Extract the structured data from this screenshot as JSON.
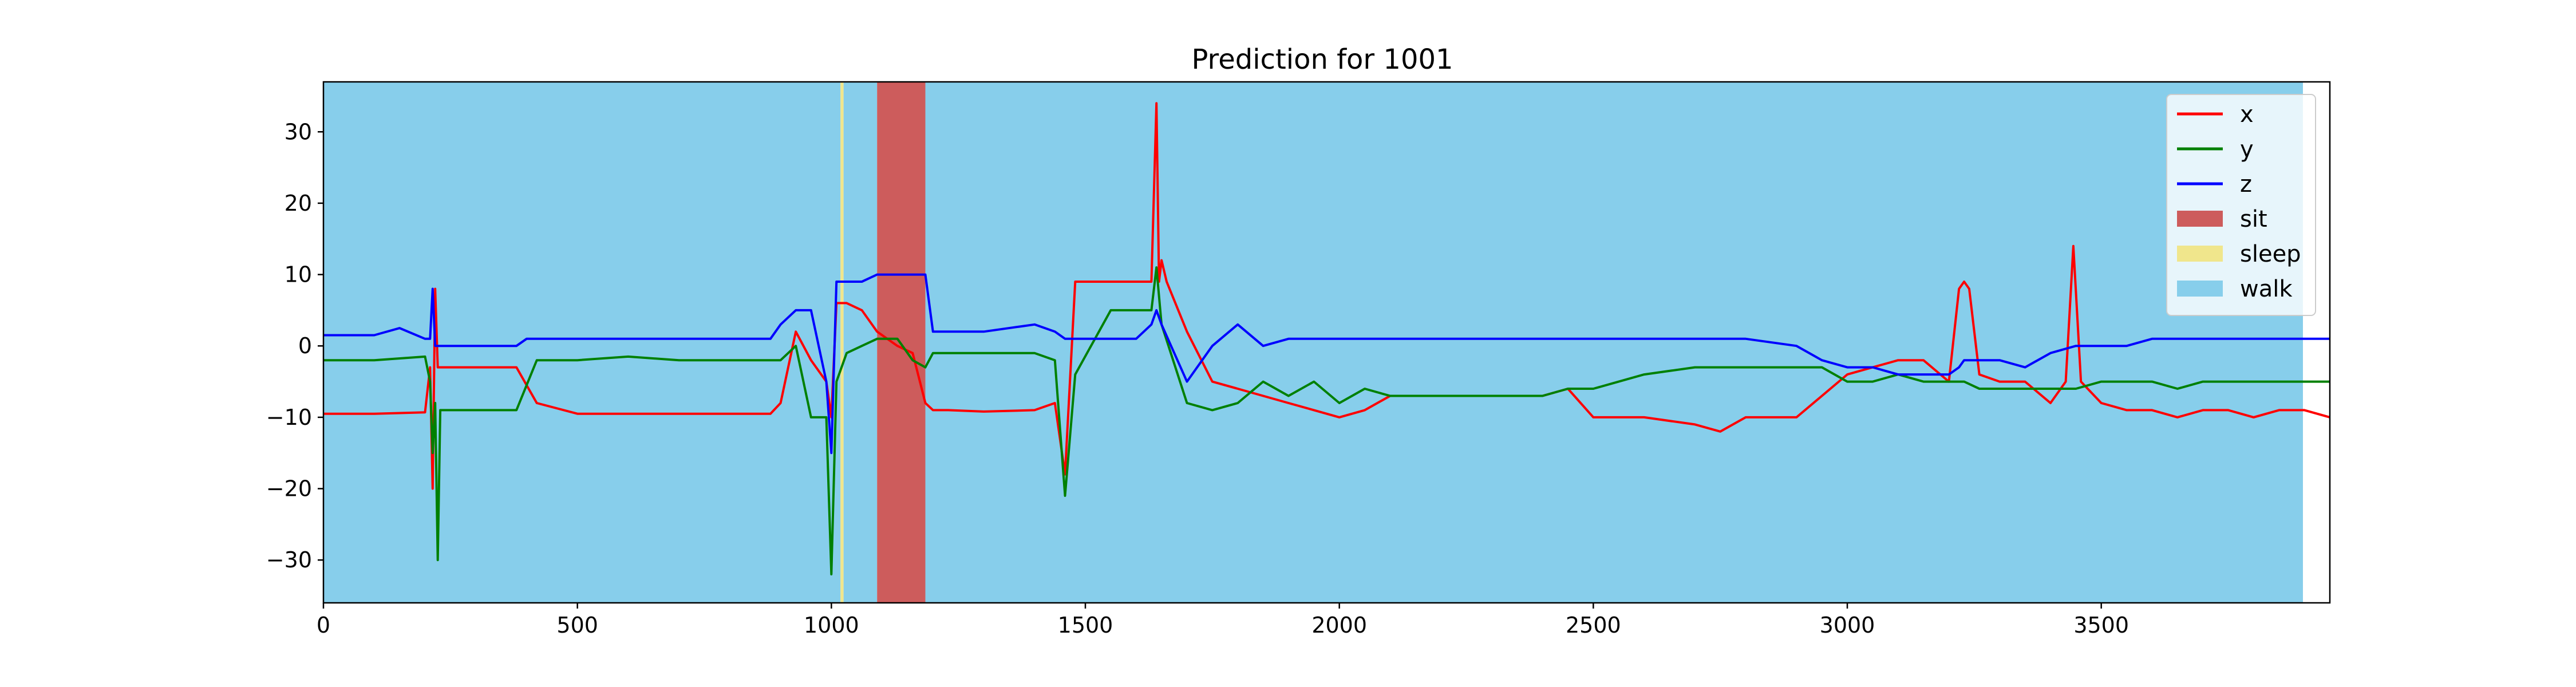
{
  "chart_data": {
    "type": "line",
    "title": "Prediction for 1001",
    "xlabel": "",
    "ylabel": "",
    "xlim": [
      0,
      3950
    ],
    "ylim": [
      -36,
      37
    ],
    "xticks": [
      0,
      500,
      1000,
      1500,
      2000,
      2500,
      3000,
      3500
    ],
    "yticks": [
      -30,
      -20,
      -10,
      0,
      10,
      20,
      30
    ],
    "grid": false,
    "legend_position": "top-right",
    "regions": [
      {
        "label": "walk",
        "color": "#87CEEB",
        "x_start": 0,
        "x_end": 1018
      },
      {
        "label": "sleep",
        "color": "#F0E68C",
        "x_start": 1018,
        "x_end": 1024
      },
      {
        "label": "walk",
        "color": "#87CEEB",
        "x_start": 1024,
        "x_end": 1090
      },
      {
        "label": "sit",
        "color": "#CD5C5C",
        "x_start": 1090,
        "x_end": 1185
      },
      {
        "label": "walk",
        "color": "#87CEEB",
        "x_start": 1185,
        "x_end": 3897
      }
    ],
    "series": [
      {
        "name": "x",
        "color": "#FF0000",
        "x": [
          0,
          100,
          200,
          210,
          215,
          220,
          225,
          230,
          300,
          380,
          420,
          500,
          560,
          600,
          700,
          800,
          880,
          900,
          930,
          960,
          990,
          1000,
          1010,
          1030,
          1060,
          1090,
          1130,
          1160,
          1185,
          1200,
          1230,
          1300,
          1400,
          1440,
          1460,
          1480,
          1550,
          1600,
          1630,
          1640,
          1645,
          1650,
          1660,
          1700,
          1750,
          1800,
          1850,
          1900,
          1950,
          2000,
          2050,
          2100,
          2150,
          2200,
          2300,
          2400,
          2450,
          2500,
          2550,
          2600,
          2700,
          2750,
          2800,
          2900,
          2950,
          3000,
          3050,
          3100,
          3150,
          3200,
          3220,
          3230,
          3240,
          3260,
          3300,
          3350,
          3400,
          3430,
          3445,
          3460,
          3500,
          3550,
          3600,
          3650,
          3700,
          3750,
          3800,
          3850,
          3900,
          3950
        ],
        "y": [
          -9.5,
          -9.5,
          -9.3,
          -3,
          -20,
          8,
          -3,
          -3,
          -3,
          -3,
          -8,
          -9.5,
          -9.5,
          -9.5,
          -9.5,
          -9.5,
          -9.5,
          -8,
          2,
          -2,
          -5,
          -10,
          6,
          6,
          5,
          2,
          0,
          -1,
          -8,
          -9,
          -9,
          -9.2,
          -9,
          -8,
          -18,
          9,
          9,
          9,
          9,
          34,
          9,
          12,
          9,
          2,
          -5,
          -6,
          -7,
          -8,
          -9,
          -10,
          -9,
          -7,
          -7,
          -7,
          -7,
          -7,
          -6,
          -10,
          -10,
          -10,
          -11,
          -12,
          -10,
          -10,
          -7,
          -4,
          -3,
          -2,
          -2,
          -5,
          8,
          9,
          8,
          -4,
          -5,
          -5,
          -8,
          -5,
          14,
          -5,
          -8,
          -9,
          -9,
          -10,
          -9,
          -9,
          -10,
          -9,
          -9,
          -10
        ]
      },
      {
        "name": "y",
        "color": "#008000",
        "x": [
          0,
          100,
          200,
          210,
          215,
          220,
          225,
          230,
          300,
          380,
          420,
          500,
          600,
          700,
          800,
          880,
          900,
          930,
          960,
          990,
          1000,
          1010,
          1030,
          1060,
          1090,
          1130,
          1160,
          1185,
          1200,
          1230,
          1300,
          1400,
          1440,
          1460,
          1480,
          1550,
          1600,
          1630,
          1640,
          1650,
          1700,
          1750,
          1800,
          1850,
          1900,
          1950,
          2000,
          2050,
          2100,
          2150,
          2200,
          2300,
          2400,
          2450,
          2500,
          2550,
          2600,
          2700,
          2750,
          2800,
          2900,
          2950,
          3000,
          3050,
          3100,
          3150,
          3200,
          3220,
          3230,
          3260,
          3300,
          3350,
          3400,
          3450,
          3500,
          3550,
          3600,
          3650,
          3700,
          3750,
          3800,
          3850,
          3900,
          3950
        ],
        "y": [
          -2,
          -2,
          -1.5,
          -5,
          -15,
          -8,
          -30,
          -9,
          -9,
          -9,
          -2,
          -2,
          -1.5,
          -2,
          -2,
          -2,
          -2,
          0,
          -10,
          -10,
          -32,
          -5,
          -1,
          0,
          1,
          1,
          -2,
          -3,
          -1,
          -1,
          -1,
          -1,
          -2,
          -21,
          -4,
          5,
          5,
          5,
          11,
          3,
          -8,
          -9,
          -8,
          -5,
          -7,
          -5,
          -8,
          -6,
          -7,
          -7,
          -7,
          -7,
          -7,
          -6,
          -6,
          -5,
          -4,
          -3,
          -3,
          -3,
          -3,
          -3,
          -5,
          -5,
          -4,
          -5,
          -5,
          -5,
          -5,
          -6,
          -6,
          -6,
          -6,
          -6,
          -5,
          -5,
          -5,
          -6,
          -5,
          -5,
          -5,
          -5,
          -5,
          -5
        ]
      },
      {
        "name": "z",
        "color": "#0000FF",
        "x": [
          0,
          100,
          150,
          200,
          210,
          215,
          220,
          225,
          230,
          300,
          380,
          400,
          450,
          500,
          600,
          700,
          800,
          880,
          900,
          930,
          960,
          990,
          1000,
          1010,
          1030,
          1060,
          1090,
          1130,
          1160,
          1185,
          1200,
          1230,
          1300,
          1400,
          1440,
          1460,
          1480,
          1550,
          1600,
          1630,
          1640,
          1650,
          1700,
          1750,
          1800,
          1850,
          1900,
          1950,
          2000,
          2050,
          2100,
          2150,
          2200,
          2300,
          2400,
          2450,
          2500,
          2550,
          2600,
          2700,
          2750,
          2800,
          2900,
          2950,
          3000,
          3050,
          3100,
          3150,
          3200,
          3220,
          3230,
          3260,
          3300,
          3350,
          3400,
          3450,
          3500,
          3550,
          3600,
          3650,
          3700,
          3750,
          3800,
          3850,
          3900,
          3950
        ],
        "y": [
          1.5,
          1.5,
          2.5,
          1,
          1,
          8,
          0,
          0,
          0,
          0,
          0,
          1,
          1,
          1,
          1,
          1,
          1,
          1,
          3,
          5,
          5,
          -5,
          -15,
          9,
          9,
          9,
          10,
          10,
          10,
          10,
          2,
          2,
          2,
          3,
          2,
          1,
          1,
          1,
          1,
          3,
          5,
          3,
          -5,
          0,
          3,
          0,
          1,
          1,
          1,
          1,
          1,
          1,
          1,
          1,
          1,
          1,
          1,
          1,
          1,
          1,
          1,
          1,
          0,
          -2,
          -3,
          -3,
          -4,
          -4,
          -4,
          -3,
          -2,
          -2,
          -2,
          -3,
          -1,
          0,
          0,
          0,
          1,
          1,
          1,
          1,
          1,
          1,
          1,
          1
        ]
      }
    ],
    "legend": [
      {
        "label": "x",
        "kind": "line",
        "color": "#FF0000"
      },
      {
        "label": "y",
        "kind": "line",
        "color": "#008000"
      },
      {
        "label": "z",
        "kind": "line",
        "color": "#0000FF"
      },
      {
        "label": "sit",
        "kind": "patch",
        "color": "#CD5C5C"
      },
      {
        "label": "sleep",
        "kind": "patch",
        "color": "#F0E68C"
      },
      {
        "label": "walk",
        "kind": "patch",
        "color": "#87CEEB"
      }
    ]
  }
}
